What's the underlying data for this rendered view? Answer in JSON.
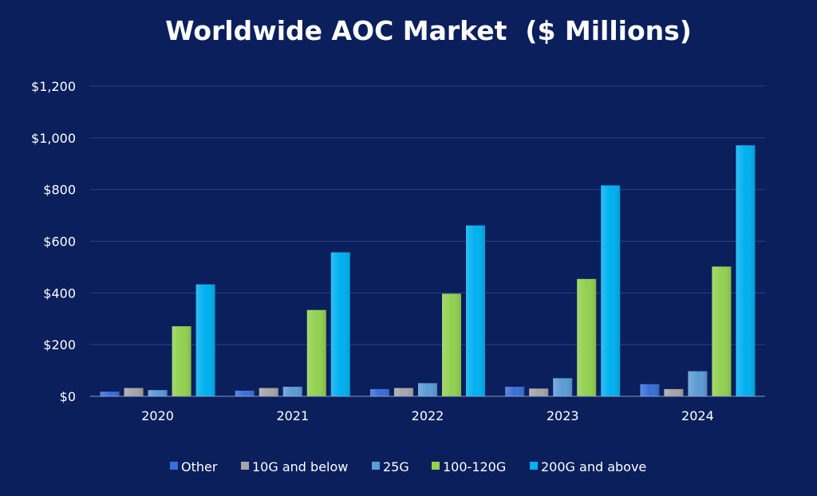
{
  "chart_data": {
    "type": "bar",
    "title": "Worldwide AOC Market  ($ Millions)",
    "xlabel": "",
    "ylabel": "",
    "categories": [
      "2020",
      "2021",
      "2022",
      "2023",
      "2024"
    ],
    "ylim": [
      0,
      1200
    ],
    "yticks": [
      0,
      200,
      400,
      600,
      800,
      1000,
      1200
    ],
    "ytick_labels": [
      "$0",
      "$200",
      "$400",
      "$600",
      "$800",
      "$1,000",
      "$1,200"
    ],
    "grid": true,
    "legend_position": "bottom",
    "background_color": "#0b1f5c",
    "series": [
      {
        "name": "Other",
        "color": "#3a6fd8",
        "values": [
          18,
          22,
          28,
          37,
          47
        ]
      },
      {
        "name": "10G and below",
        "color": "#a6a6a6",
        "values": [
          32,
          32,
          32,
          30,
          28
        ]
      },
      {
        "name": "25G",
        "color": "#5b9bd5",
        "values": [
          24,
          37,
          51,
          70,
          97
        ]
      },
      {
        "name": "100-120G",
        "color": "#92d050",
        "values": [
          271,
          334,
          397,
          454,
          502
        ]
      },
      {
        "name": "200G and above",
        "color": "#00b0f0",
        "values": [
          433,
          557,
          661,
          816,
          971
        ]
      }
    ]
  }
}
